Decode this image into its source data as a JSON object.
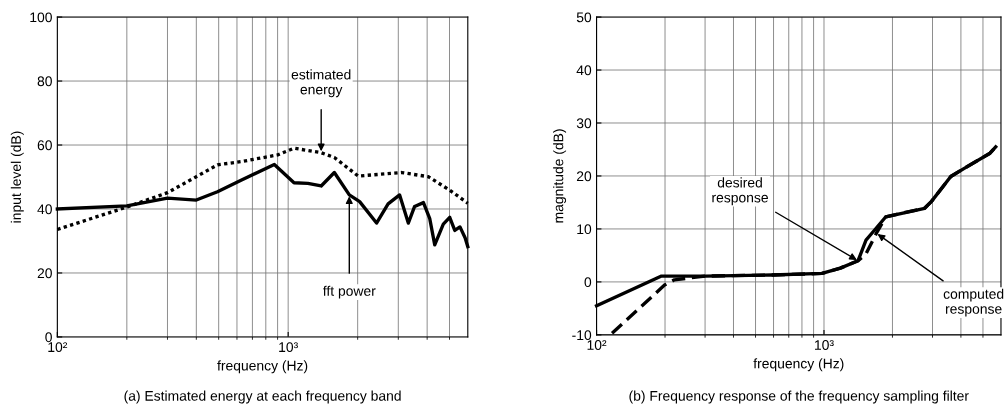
{
  "chart_data": [
    {
      "type": "line",
      "title": "(a) Estimated energy at each frequency band",
      "xlabel": "frequency (Hz)",
      "ylabel": "input level (dB)",
      "log": "x",
      "xlim": [
        100,
        6000
      ],
      "xticks": [
        {
          "value": 100,
          "label": "10²"
        },
        {
          "value": 200,
          "label": null
        },
        {
          "value": 300,
          "label": null
        },
        {
          "value": 400,
          "label": null
        },
        {
          "value": 500,
          "label": null
        },
        {
          "value": 600,
          "label": null
        },
        {
          "value": 700,
          "label": null
        },
        {
          "value": 800,
          "label": null
        },
        {
          "value": 900,
          "label": null
        },
        {
          "value": 1000,
          "label": "10³"
        },
        {
          "value": 2000,
          "label": null
        },
        {
          "value": 3000,
          "label": null
        },
        {
          "value": 4000,
          "label": null
        },
        {
          "value": 5000,
          "label": null
        }
      ],
      "ylim": [
        0,
        100
      ],
      "yticks": [
        0,
        20,
        40,
        60,
        80,
        100
      ],
      "grid": true,
      "marker": "none",
      "series": [
        {
          "name": "fft power",
          "color": "#000000",
          "line_style": "solid",
          "x": [
            100,
            200,
            300,
            400,
            494,
            625,
            871,
            1060,
            1217,
            1390,
            1585,
            1840,
            2040,
            2415,
            2710,
            3040,
            3315,
            3530,
            3855,
            4105,
            4315,
            4700,
            5010,
            5270,
            5550,
            5840,
            6000
          ],
          "values": [
            40,
            41,
            43.4,
            42.8,
            45.4,
            49,
            53.9,
            48.2,
            48,
            47.2,
            51.4,
            44.4,
            42.3,
            35.6,
            41.6,
            44.4,
            35.6,
            40.8,
            42,
            37,
            28.8,
            35.3,
            37.4,
            33.3,
            34.4,
            31,
            28.2
          ]
        },
        {
          "name": "estimated\nenergy",
          "color": "#000000",
          "line_style": "dotted",
          "x": [
            100,
            200,
            300,
            400,
            494,
            625,
            900,
            1060,
            1390,
            1585,
            2010,
            3100,
            4045,
            5010,
            6000
          ],
          "values": [
            33.6,
            40.6,
            45.1,
            50.1,
            53.8,
            54.8,
            56.9,
            59,
            57.6,
            56.1,
            50.3,
            51.4,
            50.1,
            45.9,
            41.8
          ]
        }
      ]
    },
    {
      "type": "line",
      "title": "(b) Frequency response of the frequency sampling filter",
      "xlabel": "frequency (Hz)",
      "ylabel": "magnitude (dB)",
      "log": "x",
      "xlim": [
        100,
        6000
      ],
      "xticks": [
        {
          "value": 100,
          "label": "10²"
        },
        {
          "value": 200,
          "label": null
        },
        {
          "value": 300,
          "label": null
        },
        {
          "value": 400,
          "label": null
        },
        {
          "value": 500,
          "label": null
        },
        {
          "value": 600,
          "label": null
        },
        {
          "value": 700,
          "label": null
        },
        {
          "value": 800,
          "label": null
        },
        {
          "value": 900,
          "label": null
        },
        {
          "value": 1000,
          "label": "10³"
        },
        {
          "value": 2000,
          "label": null
        },
        {
          "value": 3000,
          "label": null
        },
        {
          "value": 4000,
          "label": null
        },
        {
          "value": 5000,
          "label": null
        }
      ],
      "ylim": [
        -10,
        50
      ],
      "yticks": [
        -10,
        0,
        10,
        20,
        30,
        40,
        50
      ],
      "grid": true,
      "marker": "none",
      "series": [
        {
          "color": "#000000",
          "line_style": "solid",
          "x": [
            100,
            193,
            300,
            590,
            980,
            1180,
            1412,
            1530,
            1670,
            1870,
            2770,
            2970,
            3610,
            4120,
            5370,
            5690
          ],
          "values": [
            -4.5,
            1.1,
            1.1,
            1.3,
            1.6,
            2.6,
            4.0,
            7.9,
            9.8,
            12.3,
            13.9,
            15.2,
            19.9,
            21.4,
            24.3,
            25.5
          ]
        },
        {
          "color": "#000000",
          "line_style": "dashed",
          "x": [
            117,
            199,
            220,
            300,
            590,
            980,
            1180,
            1412,
            1530,
            1700,
            1870,
            2770,
            2970,
            3610,
            4120,
            5370,
            5690
          ],
          "values": [
            -9.7,
            -0.6,
            0.4,
            1.1,
            1.3,
            1.6,
            2.6,
            4.0,
            5.3,
            9.2,
            12.3,
            13.9,
            15.2,
            19.9,
            21.4,
            24.3,
            25.5
          ]
        }
      ],
      "annotations": [
        {
          "text": "desired\nresponse",
          "x": 1412,
          "y": 4.0
        },
        {
          "text": "computed\nresponse",
          "x": 1700,
          "y": 9.2
        }
      ]
    }
  ]
}
